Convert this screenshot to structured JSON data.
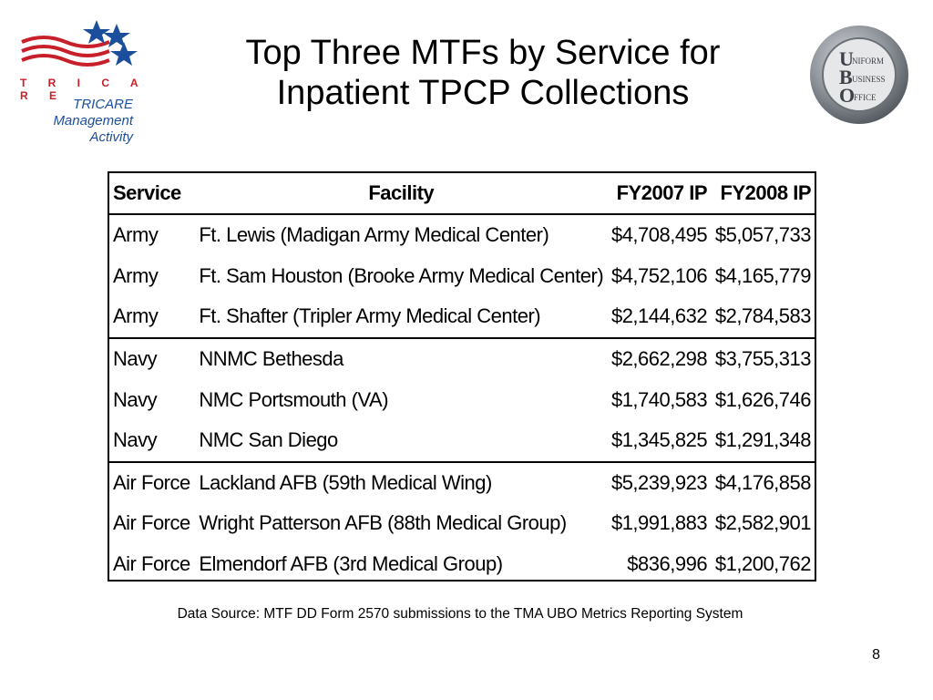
{
  "header": {
    "title_line1": "Top Three MTFs by Service for",
    "title_line2": "Inpatient TPCP Collections"
  },
  "logo_left": {
    "wordmark": "T R I C A R E",
    "tagline_line1": "TRICARE",
    "tagline_line2": "Management",
    "tagline_line3": "Activity",
    "colors": {
      "red": "#c8202a",
      "blue": "#1b4f9c"
    }
  },
  "logo_right": {
    "seal_text": "UNIFORM BUSINESS OFFICE",
    "colors": {
      "ring": "#8a8f96",
      "inner": "#e6e7e9"
    }
  },
  "table": {
    "headers": [
      "Service",
      "Facility",
      "FY2007 IP",
      "FY2008 IP"
    ],
    "rows": [
      [
        "Army",
        "Ft. Lewis (Madigan Army Medical Center)",
        "$4,708,495",
        "$5,057,733"
      ],
      [
        "Army",
        "Ft. Sam Houston (Brooke Army Medical Center)",
        "$4,752,106",
        "$4,165,779"
      ],
      [
        "Army",
        "Ft. Shafter (Tripler Army Medical Center)",
        "$2,144,632",
        "$2,784,583"
      ],
      [
        "Navy",
        "NNMC Bethesda",
        "$2,662,298",
        "$3,755,313"
      ],
      [
        "Navy",
        "NMC Portsmouth (VA)",
        "$1,740,583",
        "$1,626,746"
      ],
      [
        "Navy",
        "NMC San Diego",
        "$1,345,825",
        "$1,291,348"
      ],
      [
        "Air Force",
        "Lackland AFB (59th Medical Wing)",
        "$5,239,923",
        "$4,176,858"
      ],
      [
        "Air Force",
        "Wright Patterson AFB (88th Medical Group)",
        "$1,991,883",
        "$2,582,901"
      ],
      [
        "Air Force",
        "Elmendorf AFB (3rd Medical Group)",
        "$836,996",
        "$1,200,762"
      ]
    ]
  },
  "footer": {
    "source": "Data Source: MTF DD Form 2570 submissions to the TMA UBO Metrics Reporting System",
    "page_number": "8"
  }
}
